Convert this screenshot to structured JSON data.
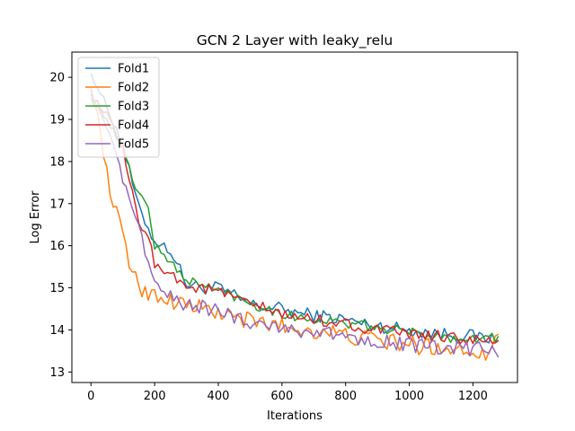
{
  "chart_data": {
    "type": "line",
    "title": "GCN 2 Layer with leaky_relu",
    "xlabel": "Iterations",
    "ylabel": "Log Error",
    "xlim": [
      -60,
      1340
    ],
    "ylim": [
      12.75,
      20.6
    ],
    "xticks": [
      0,
      200,
      400,
      600,
      800,
      1000,
      1200
    ],
    "yticks": [
      13,
      14,
      15,
      16,
      17,
      18,
      19,
      20
    ],
    "grid": false,
    "legend_position": "top-left",
    "x_step": 10,
    "series": [
      {
        "name": "Fold1",
        "color": "#1f77b4",
        "anchors": [
          [
            0,
            20.1
          ],
          [
            50,
            19.3
          ],
          [
            100,
            18.4
          ],
          [
            150,
            16.9
          ],
          [
            200,
            16.1
          ],
          [
            250,
            15.9
          ],
          [
            300,
            15.1
          ],
          [
            350,
            15.0
          ],
          [
            400,
            15.0
          ],
          [
            450,
            14.8
          ],
          [
            500,
            14.6
          ],
          [
            550,
            14.55
          ],
          [
            600,
            14.5
          ],
          [
            650,
            14.4
          ],
          [
            700,
            14.35
          ],
          [
            750,
            14.3
          ],
          [
            800,
            14.25
          ],
          [
            850,
            14.15
          ],
          [
            900,
            14.1
          ],
          [
            950,
            14.05
          ],
          [
            1000,
            14.0
          ],
          [
            1050,
            13.95
          ],
          [
            1100,
            13.9
          ],
          [
            1150,
            13.9
          ],
          [
            1200,
            13.85
          ],
          [
            1250,
            13.8
          ],
          [
            1280,
            13.75
          ]
        ],
        "noise": 0.16
      },
      {
        "name": "Fold2",
        "color": "#ff7f0e",
        "anchors": [
          [
            0,
            19.8
          ],
          [
            20,
            19.1
          ],
          [
            40,
            18.2
          ],
          [
            60,
            17.3
          ],
          [
            80,
            16.8
          ],
          [
            100,
            16.3
          ],
          [
            120,
            15.5
          ],
          [
            140,
            15.4
          ],
          [
            160,
            14.9
          ],
          [
            200,
            14.85
          ],
          [
            250,
            14.7
          ],
          [
            300,
            14.6
          ],
          [
            350,
            14.5
          ],
          [
            400,
            14.4
          ],
          [
            450,
            14.3
          ],
          [
            500,
            14.2
          ],
          [
            550,
            14.15
          ],
          [
            600,
            14.1
          ],
          [
            650,
            14.0
          ],
          [
            700,
            14.0
          ],
          [
            750,
            13.95
          ],
          [
            800,
            13.85
          ],
          [
            850,
            13.8
          ],
          [
            900,
            13.75
          ],
          [
            950,
            13.7
          ],
          [
            1000,
            13.65
          ],
          [
            1050,
            13.6
          ],
          [
            1100,
            13.6
          ],
          [
            1150,
            13.55
          ],
          [
            1200,
            13.5
          ],
          [
            1250,
            13.5
          ],
          [
            1280,
            13.9
          ]
        ],
        "noise": 0.22
      },
      {
        "name": "Fold3",
        "color": "#2ca02c",
        "anchors": [
          [
            0,
            19.5
          ],
          [
            50,
            19.0
          ],
          [
            100,
            18.3
          ],
          [
            140,
            17.4
          ],
          [
            180,
            16.9
          ],
          [
            200,
            16.0
          ],
          [
            250,
            15.6
          ],
          [
            300,
            15.2
          ],
          [
            350,
            15.05
          ],
          [
            400,
            14.95
          ],
          [
            450,
            14.8
          ],
          [
            500,
            14.65
          ],
          [
            550,
            14.5
          ],
          [
            600,
            14.4
          ],
          [
            650,
            14.3
          ],
          [
            700,
            14.25
          ],
          [
            750,
            14.2
          ],
          [
            800,
            14.15
          ],
          [
            850,
            14.1
          ],
          [
            900,
            14.05
          ],
          [
            950,
            14.0
          ],
          [
            1000,
            13.95
          ],
          [
            1050,
            13.9
          ],
          [
            1100,
            13.85
          ],
          [
            1150,
            13.8
          ],
          [
            1200,
            13.8
          ],
          [
            1250,
            13.8
          ],
          [
            1280,
            13.85
          ]
        ],
        "noise": 0.12
      },
      {
        "name": "Fold4",
        "color": "#d62728",
        "anchors": [
          [
            0,
            19.6
          ],
          [
            50,
            19.1
          ],
          [
            100,
            18.3
          ],
          [
            150,
            16.5
          ],
          [
            180,
            16.3
          ],
          [
            200,
            15.5
          ],
          [
            250,
            15.4
          ],
          [
            300,
            15.0
          ],
          [
            350,
            15.0
          ],
          [
            400,
            14.9
          ],
          [
            450,
            14.75
          ],
          [
            500,
            14.6
          ],
          [
            550,
            14.5
          ],
          [
            600,
            14.35
          ],
          [
            650,
            14.3
          ],
          [
            700,
            14.25
          ],
          [
            750,
            14.2
          ],
          [
            800,
            14.15
          ],
          [
            850,
            14.05
          ],
          [
            900,
            14.0
          ],
          [
            950,
            13.95
          ],
          [
            1000,
            13.9
          ],
          [
            1050,
            13.85
          ],
          [
            1100,
            13.85
          ],
          [
            1150,
            13.8
          ],
          [
            1200,
            13.75
          ],
          [
            1250,
            13.7
          ],
          [
            1280,
            13.75
          ]
        ],
        "noise": 0.14
      },
      {
        "name": "Fold5",
        "color": "#9467bd",
        "anchors": [
          [
            0,
            19.7
          ],
          [
            40,
            19.0
          ],
          [
            80,
            18.1
          ],
          [
            110,
            17.3
          ],
          [
            130,
            16.8
          ],
          [
            160,
            16.2
          ],
          [
            180,
            15.6
          ],
          [
            200,
            15.1
          ],
          [
            230,
            14.9
          ],
          [
            260,
            14.7
          ],
          [
            300,
            14.6
          ],
          [
            350,
            14.55
          ],
          [
            400,
            14.45
          ],
          [
            450,
            14.3
          ],
          [
            500,
            14.2
          ],
          [
            550,
            14.15
          ],
          [
            600,
            14.05
          ],
          [
            650,
            14.0
          ],
          [
            700,
            13.95
          ],
          [
            750,
            13.9
          ],
          [
            800,
            13.85
          ],
          [
            850,
            13.8
          ],
          [
            900,
            13.75
          ],
          [
            950,
            13.7
          ],
          [
            1000,
            13.65
          ],
          [
            1050,
            13.6
          ],
          [
            1100,
            13.55
          ],
          [
            1150,
            13.55
          ],
          [
            1200,
            13.55
          ],
          [
            1250,
            13.55
          ],
          [
            1280,
            13.35
          ]
        ],
        "noise": 0.18
      }
    ]
  }
}
